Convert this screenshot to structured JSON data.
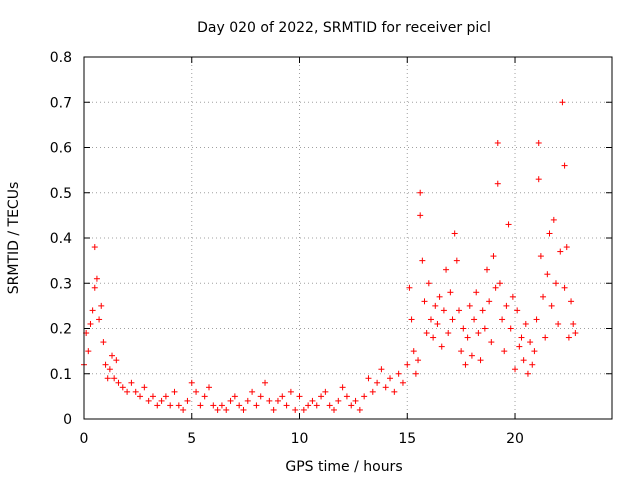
{
  "chart_data": {
    "type": "scatter",
    "title": "Day 020 of 2022, SRMTID for receiver picl",
    "xlabel": "GPS time / hours",
    "ylabel": "SRMTID / TECUs",
    "xlim": [
      0,
      24.5
    ],
    "ylim": [
      0,
      0.8
    ],
    "xticks": [
      0,
      5,
      10,
      15,
      20
    ],
    "xtick_labels": [
      "0",
      "5",
      "10",
      "15",
      "20"
    ],
    "yticks": [
      0,
      0.1,
      0.2,
      0.3,
      0.4,
      0.5,
      0.6,
      0.7,
      0.8
    ],
    "ytick_labels": [
      "0",
      "0.1",
      "0.2",
      "0.3",
      "0.4",
      "0.5",
      "0.6",
      "0.7",
      "0.8"
    ],
    "grid": true,
    "marker": "plus",
    "color": "#ff0000",
    "series": [
      {
        "name": "SRMTID",
        "x": [
          0.0,
          0.1,
          0.2,
          0.3,
          0.4,
          0.5,
          0.5,
          0.6,
          0.7,
          0.8,
          0.9,
          1.0,
          1.1,
          1.2,
          1.3,
          1.4,
          1.5,
          1.6,
          1.8,
          2.0,
          2.2,
          2.4,
          2.6,
          2.8,
          3.0,
          3.2,
          3.4,
          3.6,
          3.8,
          4.0,
          4.2,
          4.4,
          4.6,
          4.8,
          5.0,
          5.2,
          5.4,
          5.6,
          5.8,
          6.0,
          6.2,
          6.4,
          6.6,
          6.8,
          7.0,
          7.2,
          7.4,
          7.6,
          7.8,
          8.0,
          8.2,
          8.4,
          8.6,
          8.8,
          9.0,
          9.2,
          9.4,
          9.6,
          9.8,
          10.0,
          10.2,
          10.4,
          10.6,
          10.8,
          11.0,
          11.2,
          11.4,
          11.6,
          11.8,
          12.0,
          12.2,
          12.4,
          12.6,
          12.8,
          13.0,
          13.2,
          13.4,
          13.6,
          13.8,
          14.0,
          14.2,
          14.4,
          14.6,
          14.8,
          15.0,
          15.1,
          15.2,
          15.3,
          15.4,
          15.5,
          15.6,
          15.6,
          15.7,
          15.8,
          15.9,
          16.0,
          16.1,
          16.2,
          16.3,
          16.4,
          16.5,
          16.6,
          16.7,
          16.8,
          16.9,
          17.0,
          17.1,
          17.2,
          17.3,
          17.4,
          17.5,
          17.6,
          17.7,
          17.8,
          17.9,
          18.0,
          18.1,
          18.2,
          18.3,
          18.4,
          18.5,
          18.6,
          18.7,
          18.8,
          18.9,
          19.0,
          19.1,
          19.2,
          19.2,
          19.3,
          19.4,
          19.5,
          19.6,
          19.7,
          19.8,
          19.9,
          20.0,
          20.1,
          20.2,
          20.3,
          20.4,
          20.5,
          20.6,
          20.7,
          20.8,
          20.9,
          21.0,
          21.1,
          21.1,
          21.2,
          21.3,
          21.4,
          21.5,
          21.6,
          21.7,
          21.8,
          21.9,
          22.0,
          22.1,
          22.2,
          22.3,
          22.3,
          22.4,
          22.5,
          22.6,
          22.7,
          22.8
        ],
        "y": [
          0.12,
          0.19,
          0.15,
          0.21,
          0.24,
          0.29,
          0.38,
          0.31,
          0.22,
          0.25,
          0.17,
          0.12,
          0.09,
          0.11,
          0.14,
          0.09,
          0.13,
          0.08,
          0.07,
          0.06,
          0.08,
          0.06,
          0.05,
          0.07,
          0.04,
          0.05,
          0.03,
          0.04,
          0.05,
          0.03,
          0.06,
          0.03,
          0.02,
          0.04,
          0.08,
          0.06,
          0.03,
          0.05,
          0.07,
          0.03,
          0.02,
          0.03,
          0.02,
          0.04,
          0.05,
          0.03,
          0.02,
          0.04,
          0.06,
          0.03,
          0.05,
          0.08,
          0.04,
          0.02,
          0.04,
          0.05,
          0.03,
          0.06,
          0.02,
          0.05,
          0.02,
          0.03,
          0.04,
          0.03,
          0.05,
          0.06,
          0.03,
          0.02,
          0.04,
          0.07,
          0.05,
          0.03,
          0.04,
          0.02,
          0.05,
          0.09,
          0.06,
          0.08,
          0.11,
          0.07,
          0.09,
          0.06,
          0.1,
          0.08,
          0.12,
          0.29,
          0.22,
          0.15,
          0.1,
          0.13,
          0.5,
          0.45,
          0.35,
          0.26,
          0.19,
          0.3,
          0.22,
          0.18,
          0.25,
          0.21,
          0.27,
          0.16,
          0.24,
          0.33,
          0.19,
          0.28,
          0.22,
          0.41,
          0.35,
          0.24,
          0.15,
          0.2,
          0.12,
          0.18,
          0.25,
          0.14,
          0.22,
          0.28,
          0.19,
          0.13,
          0.24,
          0.2,
          0.33,
          0.26,
          0.17,
          0.36,
          0.29,
          0.52,
          0.61,
          0.3,
          0.22,
          0.15,
          0.25,
          0.43,
          0.2,
          0.27,
          0.11,
          0.24,
          0.16,
          0.18,
          0.13,
          0.21,
          0.1,
          0.17,
          0.12,
          0.15,
          0.22,
          0.61,
          0.53,
          0.36,
          0.27,
          0.18,
          0.32,
          0.41,
          0.25,
          0.44,
          0.3,
          0.21,
          0.37,
          0.7,
          0.56,
          0.29,
          0.38,
          0.18,
          0.26,
          0.21,
          0.19
        ]
      }
    ]
  }
}
